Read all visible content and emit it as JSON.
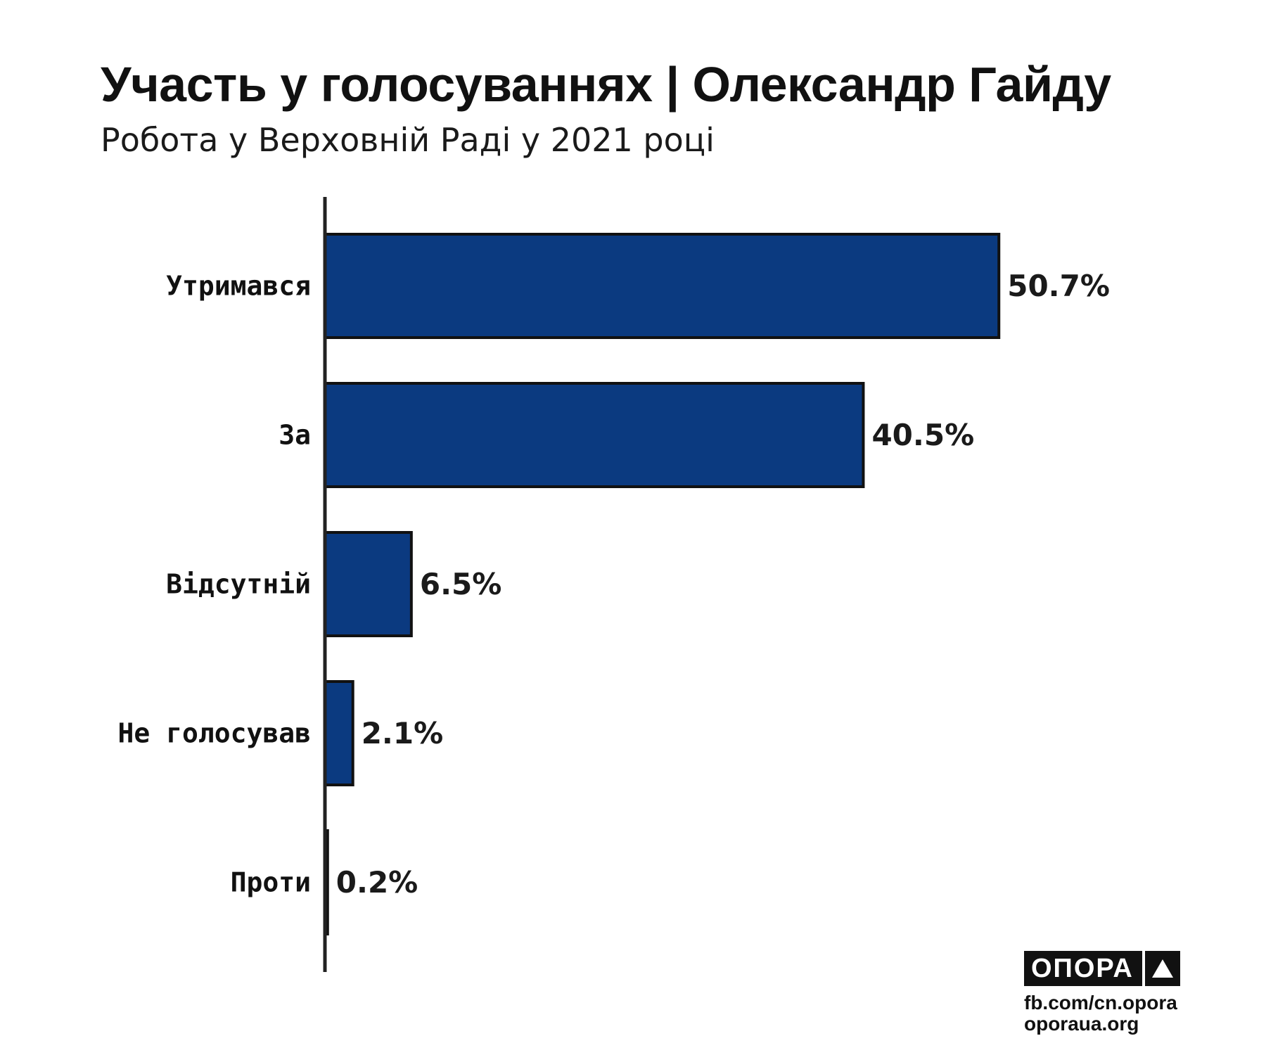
{
  "chart_data": {
    "type": "bar",
    "orientation": "horizontal",
    "title": "Участь у голосуваннях | Олександр Гайду",
    "subtitle": "Робота у Верховній Раді у 2021 році",
    "categories": [
      "Утримався",
      "За",
      "Відсутній",
      "Не голосував",
      "Проти"
    ],
    "values": [
      50.7,
      40.5,
      6.5,
      2.1,
      0.2
    ],
    "value_labels": [
      "50.7%",
      "40.5%",
      "6.5%",
      "2.1%",
      "0.2%"
    ],
    "xlim": [
      0,
      60
    ],
    "grid": false,
    "legend": "none",
    "bar_color": "#0b3a80"
  },
  "branding": {
    "logo_text": "ОПОРА",
    "logo_icon": "triangle-icon",
    "links": [
      "fb.com/cn.opora",
      "oporaua.org"
    ]
  }
}
